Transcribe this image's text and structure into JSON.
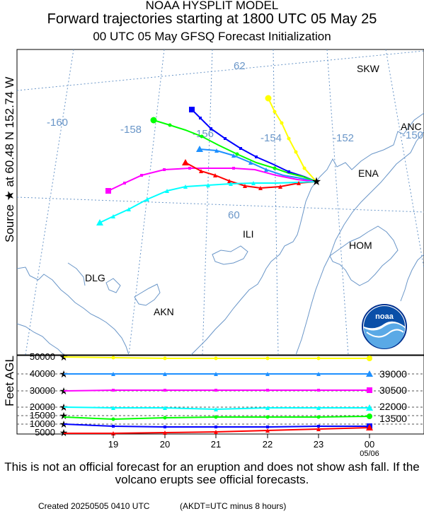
{
  "header": {
    "line1": "NOAA HYSPLIT MODEL",
    "line2": "Forward trajectories starting at 1800 UTC 05 May 25",
    "line3": "00 UTC 05 May    GFSQ  Forecast Initialization"
  },
  "y_labels": {
    "source": "Source ★ at    60.48 N  152.74 W",
    "altitude": "Feet AGL"
  },
  "map": {
    "longitude_labels": [
      "-160",
      "-158",
      "-156",
      "-154",
      "-152",
      "-150"
    ],
    "latitude_labels": [
      "62",
      "60"
    ],
    "places": [
      "SKW",
      "ANC",
      "ENA",
      "ILI",
      "HOM",
      "DLG",
      "AKN"
    ],
    "logo_text": "noaa"
  },
  "altitude_panel": {
    "left_ticks": [
      "50000",
      "40000",
      "30000",
      "20000",
      "15000",
      "10000",
      "5000"
    ],
    "right_labels": [
      "39000",
      "30500",
      "22000",
      "13500"
    ],
    "time_ticks": [
      "19",
      "20",
      "21",
      "22",
      "23",
      "00"
    ],
    "date_label": "05/06"
  },
  "trajectories": [
    {
      "color": "#ffff00",
      "marker": "circle",
      "final_height_ft": 50000
    },
    {
      "color": "#1e90ff",
      "marker": "triangle",
      "final_height_ft": 39000
    },
    {
      "color": "#ff00ff",
      "marker": "square",
      "final_height_ft": 30500
    },
    {
      "color": "#00ffff",
      "marker": "triangle",
      "final_height_ft": 22000
    },
    {
      "color": "#00ff00",
      "marker": "circle",
      "final_height_ft": 13500
    },
    {
      "color": "#0000ff",
      "marker": "square",
      "final_height_ft": 10000
    },
    {
      "color": "#ff0000",
      "marker": "triangle",
      "final_height_ft": 5000
    }
  ],
  "footer": {
    "disclaimer": "This is not an official forecast for an eruption and does not show ash fall. If the volcano erupts see official forecasts.",
    "created": "Created 20250505 0410 UTC",
    "timezone_note": "(AKDT=UTC minus 8 hours)"
  }
}
